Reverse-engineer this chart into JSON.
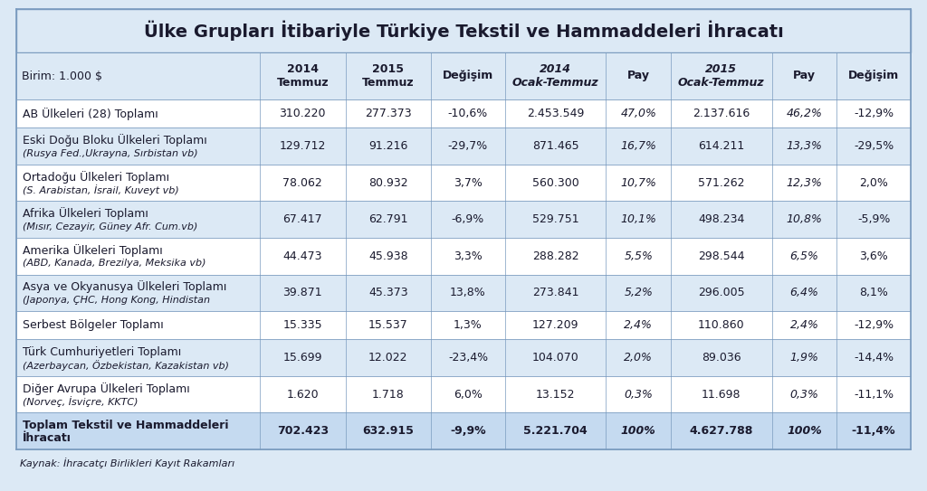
{
  "title": "Ülke Grupları İtibariyle Türkiye Tekstil ve Hammaddeleri İhracatı",
  "source": "Kaynak: İhracatçı Birlikleri Kayıt Rakamları",
  "unit": "Birim: 1.000 $",
  "col_headers": [
    "2014\nTemmuz",
    "2015\nTemmuz",
    "Değişim",
    "2014\nOcak-Temmuz",
    "Pay",
    "2015\nOcak-Temmuz",
    "Pay",
    "Değişim"
  ],
  "rows": [
    {
      "label": "AB Ülkeleri (28) Toplamı",
      "label2": "",
      "values": [
        "310.220",
        "277.373",
        "-10,6%",
        "2.453.549",
        "47,0%",
        "2.137.616",
        "46,2%",
        "-12,9%"
      ],
      "bold": false
    },
    {
      "label": "Eski Doğu Bloku Ülkeleri Toplamı",
      "label2": "(Rusya Fed.,Ukrayna, Sırbistan vb)",
      "values": [
        "129.712",
        "91.216",
        "-29,7%",
        "871.465",
        "16,7%",
        "614.211",
        "13,3%",
        "-29,5%"
      ],
      "bold": false
    },
    {
      "label": "Ortadoğu Ülkeleri Toplamı",
      "label2": "(S. Arabistan, İsrail, Kuveyt vb)",
      "values": [
        "78.062",
        "80.932",
        "3,7%",
        "560.300",
        "10,7%",
        "571.262",
        "12,3%",
        "2,0%"
      ],
      "bold": false
    },
    {
      "label": "Afrika Ülkeleri Toplamı",
      "label2": "(Mısır, Cezayir, Güney Afr. Cum.vb)",
      "values": [
        "67.417",
        "62.791",
        "-6,9%",
        "529.751",
        "10,1%",
        "498.234",
        "10,8%",
        "-5,9%"
      ],
      "bold": false
    },
    {
      "label": "Amerika Ülkeleri Toplamı",
      "label2": "(ABD, Kanada, Brezilya, Meksika vb)",
      "values": [
        "44.473",
        "45.938",
        "3,3%",
        "288.282",
        "5,5%",
        "298.544",
        "6,5%",
        "3,6%"
      ],
      "bold": false
    },
    {
      "label": "Asya ve Okyanusya Ülkeleri Toplamı",
      "label2": "(Japonya, ÇHC, Hong Kong, Hindistan",
      "values": [
        "39.871",
        "45.373",
        "13,8%",
        "273.841",
        "5,2%",
        "296.005",
        "6,4%",
        "8,1%"
      ],
      "bold": false
    },
    {
      "label": "Serbest Bölgeler Toplamı",
      "label2": "",
      "values": [
        "15.335",
        "15.537",
        "1,3%",
        "127.209",
        "2,4%",
        "110.860",
        "2,4%",
        "-12,9%"
      ],
      "bold": false
    },
    {
      "label": "Türk Cumhuriyetleri Toplamı",
      "label2": "(Azerbaycan, Özbekistan, Kazakistan vb)",
      "values": [
        "15.699",
        "12.022",
        "-23,4%",
        "104.070",
        "2,0%",
        "89.036",
        "1,9%",
        "-14,4%"
      ],
      "bold": false
    },
    {
      "label": "Diğer Avrupa Ülkeleri Toplamı",
      "label2": "(Norveç, İsviçre, KKTC)",
      "values": [
        "1.620",
        "1.718",
        "6,0%",
        "13.152",
        "0,3%",
        "11.698",
        "0,3%",
        "-11,1%"
      ],
      "bold": false
    },
    {
      "label": "Toplam Tekstil ve Hammaddeleri\nİhracatı",
      "label2": "",
      "values": [
        "702.423",
        "632.915",
        "-9,9%",
        "5.221.704",
        "100%",
        "4.627.788",
        "100%",
        "-11,4%"
      ],
      "bold": true
    }
  ],
  "bg_color": "#dce9f5",
  "title_bg": "#dce9f5",
  "header_bg": "#dce9f5",
  "row_bg_white": "#ffffff",
  "row_bg_blue": "#dce9f5",
  "last_row_bg": "#c5daf0",
  "border_color": "#7a9bbf",
  "text_color": "#1a1a2e",
  "title_fontsize": 14,
  "header_fontsize": 9,
  "cell_fontsize": 9,
  "source_fontsize": 8,
  "col_widths_rel": [
    2.7,
    0.95,
    0.95,
    0.82,
    1.12,
    0.72,
    1.12,
    0.72,
    0.82
  ],
  "pay_col_indices_in_values": [
    4,
    6
  ],
  "italic_val_indices": [
    4,
    6
  ]
}
